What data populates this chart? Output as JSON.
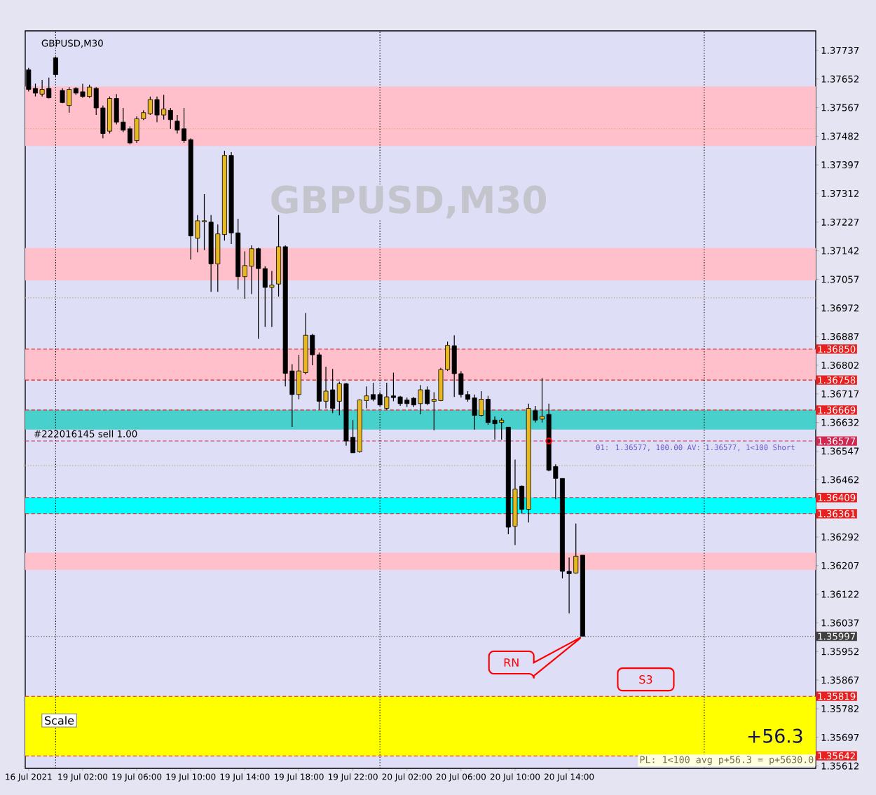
{
  "chart_data": {
    "type": "candlestick",
    "title": "GBPUSD,M30",
    "categories": [
      "16 Jul 2021",
      null,
      null,
      null,
      null,
      null,
      null,
      null,
      "19 Jul 02:00",
      null,
      null,
      null,
      null,
      null,
      null,
      null,
      "19 Jul 06:00",
      null,
      null,
      null,
      null,
      null,
      null,
      null,
      "19 Jul 10:00",
      null,
      null,
      null,
      null,
      null,
      null,
      null,
      "19 Jul 14:00",
      null,
      null,
      null,
      null,
      null,
      null,
      null,
      "19 Jul 18:00",
      null,
      null,
      null,
      null,
      null,
      null,
      null,
      "19 Jul 22:00",
      null,
      null,
      null,
      null,
      null,
      null,
      null,
      "20 Jul 02:00",
      null,
      null,
      null,
      null,
      null,
      null,
      null,
      "20 Jul 06:00",
      null,
      null,
      null,
      null,
      null,
      null,
      null,
      "20 Jul 10:00",
      null,
      null,
      null,
      null,
      null,
      null,
      null,
      "20 Jul 14:00",
      null,
      null,
      null,
      null,
      null,
      null,
      null,
      null,
      null,
      null,
      null,
      null,
      null,
      null,
      null,
      null,
      null,
      null,
      null,
      null,
      null,
      null,
      null,
      null,
      null,
      null,
      null,
      null,
      null,
      null,
      null,
      null,
      null,
      null,
      null,
      null
    ],
    "ohlc": [
      [
        1.37679,
        1.37685,
        1.37615,
        1.37621
      ],
      [
        1.37624,
        1.37638,
        1.376,
        1.3761
      ],
      [
        1.37607,
        1.37649,
        1.376,
        1.37621
      ],
      [
        1.37624,
        1.37656,
        1.37594,
        1.37596
      ],
      [
        1.37715,
        1.37718,
        1.3766,
        1.37665
      ],
      [
        1.37618,
        1.37624,
        1.3758,
        1.37582
      ],
      [
        1.37573,
        1.37628,
        1.37552,
        1.37621
      ],
      [
        1.37624,
        1.37628,
        1.37605,
        1.3761
      ],
      [
        1.37614,
        1.37638,
        1.37596,
        1.376
      ],
      [
        1.376,
        1.37635,
        1.37596,
        1.37628
      ],
      [
        1.37624,
        1.37628,
        1.37545,
        1.37566
      ],
      [
        1.37566,
        1.37573,
        1.37476,
        1.3749
      ],
      [
        1.37497,
        1.376,
        1.3749,
        1.37594
      ],
      [
        1.37594,
        1.37607,
        1.37517,
        1.37524
      ],
      [
        1.37524,
        1.37566,
        1.37494,
        1.375
      ],
      [
        1.37504,
        1.37511,
        1.37458,
        1.37462
      ],
      [
        1.37469,
        1.37541,
        1.37462,
        1.37534
      ],
      [
        1.37534,
        1.37559,
        1.3753,
        1.37552
      ],
      [
        1.37549,
        1.376,
        1.37545,
        1.37591
      ],
      [
        1.37591,
        1.376,
        1.37524,
        1.37545
      ],
      [
        1.37545,
        1.37605,
        1.37531,
        1.37563
      ],
      [
        1.37559,
        1.37566,
        1.37504,
        1.37531
      ],
      [
        1.37527,
        1.37545,
        1.3749,
        1.375
      ],
      [
        1.37504,
        1.37566,
        1.37462,
        1.37469
      ],
      [
        1.37472,
        1.37476,
        1.37116,
        1.37186
      ],
      [
        1.37179,
        1.37248,
        1.37137,
        1.37231
      ],
      [
        1.37228,
        1.3731,
        1.37144,
        1.37231
      ],
      [
        1.37227,
        1.37248,
        1.3702,
        1.37103
      ],
      [
        1.37103,
        1.3722,
        1.3702,
        1.37192
      ],
      [
        1.3719,
        1.37439,
        1.37172,
        1.37425
      ],
      [
        1.37425,
        1.37435,
        1.37162,
        1.37195
      ],
      [
        1.37195,
        1.37237,
        1.37027,
        1.37065
      ],
      [
        1.37065,
        1.3714,
        1.36999,
        1.37098
      ],
      [
        1.37096,
        1.37158,
        1.37013,
        1.37148
      ],
      [
        1.37148,
        1.37151,
        1.36881,
        1.37089
      ],
      [
        1.37089,
        1.37096,
        1.36916,
        1.37033
      ],
      [
        1.37033,
        1.37082,
        1.36916,
        1.3704
      ],
      [
        1.37043,
        1.37248,
        1.37006,
        1.37154
      ],
      [
        1.37154,
        1.37158,
        1.36739,
        1.36778
      ],
      [
        1.36785,
        1.36805,
        1.36619,
        1.36715
      ],
      [
        1.36715,
        1.36833,
        1.36701,
        1.36785
      ],
      [
        1.3678,
        1.36957,
        1.36775,
        1.36891
      ],
      [
        1.36891,
        1.36895,
        1.36802,
        1.36833
      ],
      [
        1.36833,
        1.3684,
        1.3667,
        1.36695
      ],
      [
        1.36695,
        1.36798,
        1.36674,
        1.36725
      ],
      [
        1.36729,
        1.36791,
        1.3666,
        1.36674
      ],
      [
        1.36695,
        1.36753,
        1.36653,
        1.36747
      ],
      [
        1.36747,
        1.3675,
        1.36563,
        1.36577
      ],
      [
        1.36588,
        1.36639,
        1.36542,
        1.36542
      ],
      [
        1.36545,
        1.36701,
        1.36542,
        1.36699
      ],
      [
        1.36697,
        1.36739,
        1.36674,
        1.36711
      ],
      [
        1.36715,
        1.3675,
        1.36695,
        1.36701
      ],
      [
        1.36715,
        1.36722,
        1.3668,
        1.36684
      ],
      [
        1.36674,
        1.3675,
        1.3667,
        1.36708
      ],
      [
        1.36711,
        1.3678,
        1.36695,
        1.36706
      ],
      [
        1.36708,
        1.36711,
        1.36681,
        1.36688
      ],
      [
        1.36699,
        1.36706,
        1.36678,
        1.36688
      ],
      [
        1.36704,
        1.36708,
        1.36678,
        1.36684
      ],
      [
        1.36688,
        1.36743,
        1.36656,
        1.36729
      ],
      [
        1.36729,
        1.36739,
        1.36684,
        1.36688
      ],
      [
        1.36695,
        1.36722,
        1.36609,
        1.36701
      ],
      [
        1.36697,
        1.36794,
        1.36695,
        1.36789
      ],
      [
        1.36789,
        1.36872,
        1.36785,
        1.36861
      ],
      [
        1.3686,
        1.36891,
        1.36708,
        1.36777
      ],
      [
        1.36777,
        1.36784,
        1.36706,
        1.36715
      ],
      [
        1.36715,
        1.36725,
        1.36694,
        1.36701
      ],
      [
        1.36705,
        1.36715,
        1.36611,
        1.36653
      ],
      [
        1.36653,
        1.36725,
        1.3665,
        1.36701
      ],
      [
        1.36701,
        1.36711,
        1.36625,
        1.36632
      ],
      [
        1.36639,
        1.3665,
        1.36581,
        1.36628
      ],
      [
        1.36632,
        1.36646,
        1.36581,
        1.36639
      ],
      [
        1.36618,
        1.36618,
        1.363,
        1.36321
      ],
      [
        1.36324,
        1.36522,
        1.36268,
        1.36434
      ],
      [
        1.36443,
        1.36445,
        1.36362,
        1.36374
      ],
      [
        1.36374,
        1.36688,
        1.36335,
        1.36674
      ],
      [
        1.36667,
        1.36681,
        1.36632,
        1.36639
      ],
      [
        1.36642,
        1.36764,
        1.36632,
        1.3665
      ],
      [
        1.36656,
        1.36688,
        1.36487,
        1.3649
      ],
      [
        1.36501,
        1.36508,
        1.36404,
        1.36466
      ],
      [
        1.36466,
        1.36466,
        1.36169,
        1.3619
      ],
      [
        1.3619,
        1.36231,
        1.36065,
        1.36183
      ],
      [
        1.36185,
        1.36332,
        1.36183,
        1.36235
      ],
      [
        1.36238,
        1.36238,
        1.35997,
        1.35997
      ],
      null,
      null,
      null,
      null,
      null,
      null,
      null,
      null,
      null,
      null,
      null,
      null,
      null,
      null,
      null,
      null,
      null,
      null,
      null,
      null,
      null,
      null,
      null,
      null,
      null,
      null,
      null,
      null,
      null,
      null,
      null,
      null,
      null,
      null
    ],
    "series": [
      {
        "type": "scatter",
        "color": "#ff0000",
        "values": [
          null,
          null,
          null,
          null,
          null,
          null,
          null,
          null,
          null,
          null,
          null,
          null,
          null,
          null,
          null,
          null,
          null,
          null,
          null,
          null,
          null,
          null,
          null,
          null,
          null,
          null,
          null,
          null,
          null,
          null,
          null,
          null,
          null,
          null,
          null,
          null,
          null,
          null,
          null,
          null,
          null,
          null,
          null,
          null,
          null,
          null,
          null,
          null,
          null,
          null,
          null,
          null,
          null,
          null,
          null,
          null,
          null,
          null,
          null,
          null,
          null,
          null,
          null,
          null,
          null,
          null,
          null,
          null,
          null,
          null,
          null,
          null,
          null,
          null,
          null,
          null,
          null,
          1.36577,
          null,
          null,
          null,
          null,
          null,
          null,
          null,
          null,
          null,
          null,
          null,
          null,
          null,
          null,
          null,
          null,
          null,
          null,
          null,
          null,
          null,
          null,
          null,
          null,
          null,
          null,
          null,
          null,
          null,
          null,
          null,
          null,
          null,
          null,
          null,
          null,
          null,
          null,
          null
        ]
      }
    ],
    "marker": "circle",
    "grid": "x",
    "ylim": [
      1.35605,
      1.37795
    ],
    "yticks": [
      1.37737,
      1.37652,
      1.37567,
      1.37482,
      1.37397,
      1.37312,
      1.37227,
      1.37142,
      1.37057,
      1.36972,
      1.36887,
      1.36802,
      1.36717,
      1.36632,
      1.36547,
      1.36462,
      1.36292,
      1.36207,
      1.36122,
      1.36037,
      1.35952,
      1.35867,
      1.35782,
      1.35697,
      1.35612
    ],
    "bands": [
      {
        "axis": "y",
        "from": 1.37453,
        "to": 1.3763,
        "color": "#ffc0cb"
      },
      {
        "axis": "y",
        "from": 1.37054,
        "to": 1.3715,
        "color": "#ffc0cb"
      },
      {
        "axis": "y",
        "from": 1.36758,
        "to": 1.3685,
        "color": "#ffc0cb"
      },
      {
        "axis": "y",
        "from": 1.36611,
        "to": 1.36669,
        "color": "#48d1cc"
      },
      {
        "axis": "y",
        "from": 1.36361,
        "to": 1.36409,
        "color": "#00ffff"
      },
      {
        "axis": "y",
        "from": 1.36194,
        "to": 1.36245,
        "color": "#ffc0cb"
      },
      {
        "axis": "y",
        "from": 1.35642,
        "to": 1.35819,
        "color": "#ffff00"
      }
    ],
    "ref_lines": [
      {
        "axis": "y",
        "value": 1.37504,
        "color": "#c0b070",
        "line_style": "dotted"
      },
      {
        "axis": "y",
        "value": 1.37002,
        "color": "#c0b070",
        "line_style": "dotted"
      },
      {
        "axis": "y",
        "value": 1.36504,
        "color": "#c0b070",
        "line_style": "dotted"
      },
      {
        "axis": "y",
        "value": 1.3685,
        "label": "1.36850",
        "color": "#e82020",
        "line_style": "dashed"
      },
      {
        "axis": "y",
        "value": 1.36758,
        "label": "1.36758",
        "color": "#e82020",
        "line_style": "dashed"
      },
      {
        "axis": "y",
        "value": 1.36669,
        "label": "1.36669",
        "color": "#e82020",
        "line_style": "dashed"
      },
      {
        "axis": "y",
        "value": 1.36577,
        "label": "1.36577",
        "color": "#d02850",
        "line_style": "dashed"
      },
      {
        "axis": "y",
        "value": 1.36409,
        "label": "1.36409",
        "color": "#e82020",
        "line_style": "dashed"
      },
      {
        "axis": "y",
        "value": 1.36361,
        "label": "1.36361",
        "color": "#e82020",
        "line_style": "dashed"
      },
      {
        "axis": "y",
        "value": 1.35997,
        "label": "1.35997",
        "color": "#404040",
        "line_style": "dotted"
      },
      {
        "axis": "y",
        "value": 1.35819,
        "label": "1.35819",
        "color": "#e82020",
        "line_style": "dashed"
      },
      {
        "axis": "y",
        "value": 1.35642,
        "label": "1.35642",
        "color": "#e82020",
        "line_style": "dashed"
      }
    ],
    "annotations": [
      "GBPUSD,M30",
      "#222016145 sell 1.00",
      "01: 1.36577, 100.00  AV: 1.36577, 1<100 Short",
      {
        "text": "RN",
        "y": 1.35997
      },
      {
        "text": "S3",
        "y": 1.35819
      },
      "+56.3",
      "PL: 1<100 avg p+56.3 = p+5630.0",
      "Scale"
    ]
  }
}
